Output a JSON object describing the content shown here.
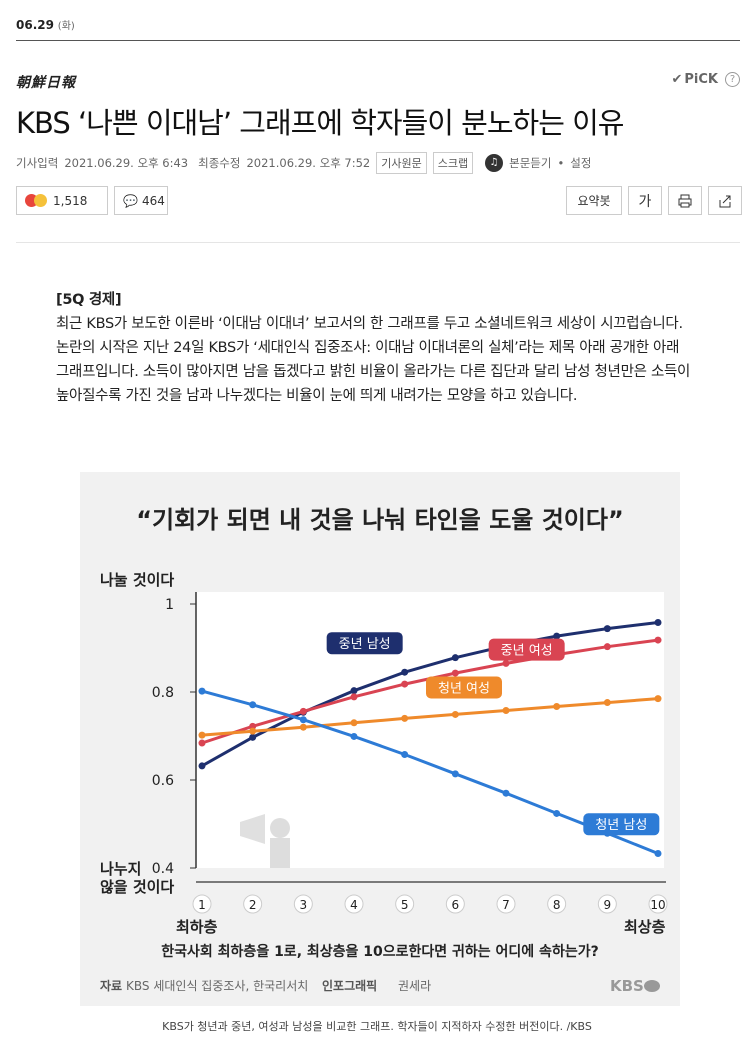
{
  "datebar": {
    "date": "06.29",
    "dow": "(화)"
  },
  "press": {
    "name": "朝鮮日報"
  },
  "pick": {
    "label": "PiCK",
    "check_icon": "check-icon",
    "help": "?"
  },
  "article": {
    "headline": "KBS ‘나쁜 이대남’ 그래프에 학자들이 분노하는 이유",
    "meta": {
      "published_label": "기사입력",
      "published": "2021.06.29. 오후 6:43",
      "modified_label": "최종수정",
      "modified": "2021.06.29. 오후 7:52",
      "original_btn": "기사원문",
      "scrap_btn": "스크랩",
      "listen_label": "본문듣기",
      "settings_label": "설정"
    },
    "reactions": {
      "count": "1,518",
      "comments": "464"
    },
    "tools": {
      "summary": "요약봇",
      "font": "가",
      "print_icon": "print-icon",
      "share_icon": "share-icon"
    },
    "section": "[5Q 경제]",
    "body": "최근 KBS가 보도한 이른바 ‘이대남 이대녀’ 보고서의 한 그래프를 두고 소셜네트워크 세상이 시끄럽습니다. 논란의 시작은 지난 24일 KBS가 ‘세대인식 집중조사: 이대남 이대녀론의 실체’라는 제목 아래 공개한 아래 그래프입니다. 소득이 많아지면 남을 돕겠다고 밝힌 비율이 올라가는 다른 집단과 달리 남성 청년만은 소득이 높아질수록 가진 것을 남과 나누겠다는 비율이 눈에 띄게 내려가는 모양을 하고 있습니다.",
    "caption": "KBS가 청년과 중년, 여성과 남성을 비교한 그래프. 학자들이 지적하자 수정한 버전이다. /KBS"
  },
  "chart_data": {
    "type": "line",
    "title": "“기회가 되면 내 것을 나눠 타인을 도울 것이다”",
    "ylabel_top": "나눌 것이다",
    "ylabel_bottom": "나누지\n않을 것이다",
    "xlabel_left": "최하층",
    "xlabel_right": "최상층",
    "xlabel": "한국사회 최하층을 1로, 최상층을 10으로한다면 귀하는 어디에 속하는가?",
    "x": [
      1,
      2,
      3,
      4,
      5,
      6,
      7,
      8,
      9,
      10
    ],
    "ylim": [
      0.4,
      1.0
    ],
    "yticks": [
      0.4,
      0.6,
      0.8,
      1
    ],
    "ytick_labels": [
      "0.4",
      "0.6",
      "0.8",
      "1"
    ],
    "series": [
      {
        "name": "중년 남성",
        "color": "#1e2f6e",
        "values": [
          0.632,
          0.697,
          0.754,
          0.803,
          0.845,
          0.878,
          0.905,
          0.927,
          0.944,
          0.958
        ]
      },
      {
        "name": "중년 여성",
        "color": "#d94452",
        "values": [
          0.684,
          0.722,
          0.756,
          0.789,
          0.818,
          0.843,
          0.865,
          0.885,
          0.903,
          0.918
        ]
      },
      {
        "name": "청년 여성",
        "color": "#ef8a2b",
        "values": [
          0.702,
          0.711,
          0.72,
          0.73,
          0.74,
          0.749,
          0.758,
          0.767,
          0.776,
          0.785
        ]
      },
      {
        "name": "청년 남성",
        "color": "#2d7bd6",
        "values": [
          0.802,
          0.771,
          0.737,
          0.699,
          0.658,
          0.614,
          0.57,
          0.524,
          0.479,
          0.433
        ]
      }
    ],
    "source_label": "자료",
    "source": "KBS 세대인식 집중조사, 한국리서치",
    "infographic_label": "인포그래픽",
    "infographic_author": "권세라",
    "logo": "KBS"
  }
}
